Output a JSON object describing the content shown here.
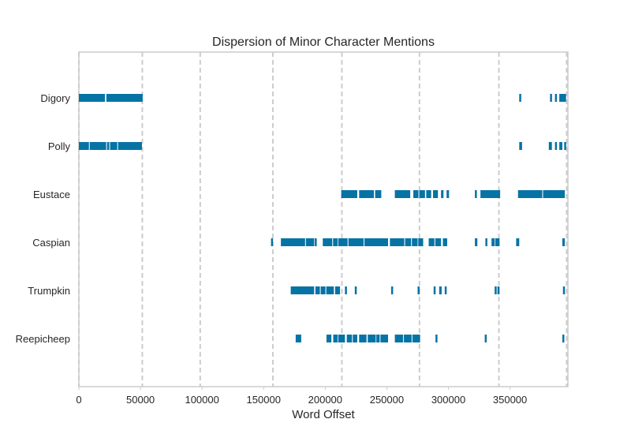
{
  "chart_data": {
    "type": "dispersion",
    "title": "Dispersion of Minor Character Mentions",
    "xlabel": "Word Offset",
    "ylabel": "",
    "xlim": [
      0,
      397000
    ],
    "grid": "vertical-dashed",
    "color": "#0673a5",
    "section_boundaries": [
      0,
      51500,
      98500,
      157500,
      213500,
      276500,
      341000,
      396000
    ],
    "x_ticks": [
      {
        "value": 0,
        "label": "0"
      },
      {
        "value": 50000,
        "label": "50000"
      },
      {
        "value": 100000,
        "label": "100000"
      },
      {
        "value": 150000,
        "label": "150000"
      },
      {
        "value": 200000,
        "label": "200000"
      },
      {
        "value": 250000,
        "label": "250000"
      },
      {
        "value": 300000,
        "label": "300000"
      },
      {
        "value": 350000,
        "label": "350000"
      }
    ],
    "characters": [
      {
        "name": "Digory",
        "spans": [
          [
            0,
            51800
          ],
          [
            357500,
            358500
          ],
          [
            382500,
            384000
          ],
          [
            386500,
            388000
          ],
          [
            390000,
            395500
          ]
        ],
        "gaps": [
          21500,
          22000
        ]
      },
      {
        "name": "Polly",
        "spans": [
          [
            0,
            51200
          ],
          [
            357500,
            359800
          ],
          [
            381500,
            384000
          ],
          [
            386500,
            387800
          ],
          [
            390000,
            392500
          ],
          [
            394000,
            395500
          ]
        ],
        "gaps": [
          8500,
          22500,
          25000,
          31500
        ]
      },
      {
        "name": "Eustace",
        "spans": [
          [
            213000,
            226000
          ],
          [
            227500,
            239500
          ],
          [
            240500,
            245500
          ],
          [
            256500,
            269000
          ],
          [
            271500,
            281000
          ],
          [
            282000,
            286000
          ],
          [
            287500,
            291500
          ],
          [
            294000,
            296000
          ],
          [
            298500,
            300500
          ],
          [
            321500,
            323000
          ],
          [
            326000,
            342000
          ],
          [
            356500,
            394500
          ]
        ],
        "gaps": [
          276000,
          376500
        ]
      },
      {
        "name": "Caspian",
        "spans": [
          [
            156000,
            157500
          ],
          [
            164000,
            191000
          ],
          [
            191500,
            192500
          ],
          [
            198000,
            210000
          ],
          [
            210500,
            251000
          ],
          [
            252500,
            275000
          ],
          [
            275500,
            279500
          ],
          [
            284000,
            294000
          ],
          [
            295500,
            299000
          ],
          [
            321500,
            323500
          ],
          [
            330000,
            331500
          ],
          [
            335000,
            337500
          ],
          [
            338000,
            341500
          ],
          [
            355000,
            357500
          ],
          [
            392500,
            394500
          ]
        ],
        "gaps": [
          184000,
          206000,
          218500,
          231500,
          264500,
          270000,
          289000
        ]
      },
      {
        "name": "Trumpkin",
        "spans": [
          [
            172000,
            191000
          ],
          [
            192000,
            207000
          ],
          [
            208000,
            212000
          ],
          [
            216000,
            217500
          ],
          [
            224000,
            225500
          ],
          [
            253500,
            255000
          ],
          [
            275000,
            276500
          ],
          [
            288000,
            289500
          ],
          [
            292500,
            294500
          ],
          [
            297000,
            298500
          ],
          [
            337500,
            341500
          ],
          [
            393000,
            394500
          ]
        ],
        "gaps": [
          196000,
          200500,
          339500
        ]
      },
      {
        "name": "Reepicheep",
        "spans": [
          [
            176000,
            180500
          ],
          [
            201000,
            205000
          ],
          [
            206500,
            210000
          ],
          [
            210500,
            216000
          ],
          [
            217500,
            226000
          ],
          [
            227500,
            233500
          ],
          [
            234500,
            241000
          ],
          [
            241500,
            251000
          ],
          [
            256500,
            277000
          ],
          [
            289500,
            291000
          ],
          [
            329500,
            331000
          ],
          [
            392500,
            394000
          ]
        ],
        "gaps": [
          222000,
          244500,
          263500,
          270500
        ]
      }
    ]
  }
}
